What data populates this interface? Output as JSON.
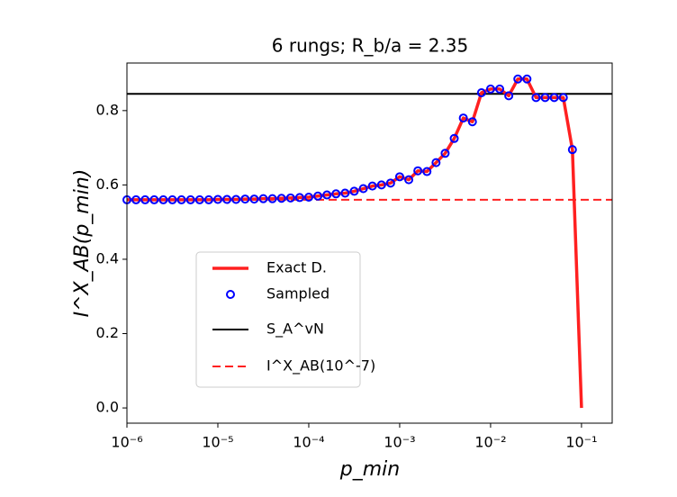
{
  "chart_data": {
    "type": "line",
    "title": "6 rungs; R_b/a = 2.35",
    "xlabel": "p_min",
    "ylabel": "I^X_AB(p_min)",
    "xlog": true,
    "xlim": [
      1e-06,
      0.2175
    ],
    "ylim": [
      -0.041,
      0.928
    ],
    "xticks": [
      {
        "value": 1e-06,
        "label": "10⁻⁶"
      },
      {
        "value": 1e-05,
        "label": "10⁻⁵"
      },
      {
        "value": 0.0001,
        "label": "10⁻⁴"
      },
      {
        "value": 0.001,
        "label": "10⁻³"
      },
      {
        "value": 0.01,
        "label": "10⁻²"
      },
      {
        "value": 0.1,
        "label": "10⁻¹"
      }
    ],
    "yticks": [
      {
        "value": 0,
        "label": "0.0"
      },
      0.2,
      0.4,
      0.6,
      0.8
    ],
    "x": [
      1e-06,
      1.259e-06,
      1.585e-06,
      1.995e-06,
      2.512e-06,
      3.162e-06,
      3.981e-06,
      5.012e-06,
      6.31e-06,
      7.943e-06,
      1e-05,
      1.259e-05,
      1.585e-05,
      1.995e-05,
      2.512e-05,
      3.162e-05,
      3.981e-05,
      5.012e-05,
      6.31e-05,
      7.943e-05,
      0.0001,
      0.0001259,
      0.0001585,
      0.0001995,
      0.0002512,
      0.0003162,
      0.0003981,
      0.0005012,
      0.000631,
      0.0007943,
      0.001,
      0.001259,
      0.001585,
      0.001995,
      0.002512,
      0.003162,
      0.003981,
      0.005012,
      0.00631,
      0.007943,
      0.01,
      0.01259,
      0.01585,
      0.01995,
      0.02512,
      0.03162,
      0.03981,
      0.05012,
      0.0631,
      0.07943,
      0.1
    ],
    "series": [
      {
        "name": "Exact D.",
        "color": "#ff2020",
        "style": "line",
        "values": [
          0.56,
          0.56,
          0.56,
          0.56,
          0.56,
          0.56,
          0.56,
          0.56,
          0.56,
          0.56,
          0.561,
          0.561,
          0.561,
          0.562,
          0.562,
          0.563,
          0.563,
          0.564,
          0.565,
          0.566,
          0.567,
          0.57,
          0.573,
          0.576,
          0.578,
          0.583,
          0.59,
          0.597,
          0.6,
          0.605,
          0.622,
          0.614,
          0.638,
          0.636,
          0.66,
          0.685,
          0.725,
          0.78,
          0.77,
          0.848,
          0.858,
          0.858,
          0.84,
          0.885,
          0.885,
          0.835,
          0.835,
          0.835,
          0.835,
          0.695,
          0
        ]
      },
      {
        "name": "Sampled",
        "color": "#0000ff",
        "style": "markers",
        "values": [
          0.56,
          0.56,
          0.56,
          0.56,
          0.56,
          0.56,
          0.56,
          0.56,
          0.56,
          0.56,
          0.561,
          0.561,
          0.561,
          0.562,
          0.562,
          0.563,
          0.563,
          0.564,
          0.565,
          0.566,
          0.567,
          0.57,
          0.573,
          0.576,
          0.578,
          0.583,
          0.59,
          0.597,
          0.6,
          0.605,
          0.622,
          0.614,
          0.638,
          0.636,
          0.66,
          0.685,
          0.725,
          0.78,
          0.77,
          0.848,
          0.858,
          0.858,
          0.84,
          0.885,
          0.885,
          0.835,
          0.835,
          0.835,
          0.835,
          0.695,
          null
        ]
      }
    ],
    "hlines": [
      {
        "name": "S_A^vN",
        "color": "#000000",
        "style": "solid",
        "y": 0.845
      },
      {
        "name": "I^X_AB(10^-7)",
        "color": "#ff2020",
        "style": "dashed",
        "y": 0.56
      }
    ]
  }
}
